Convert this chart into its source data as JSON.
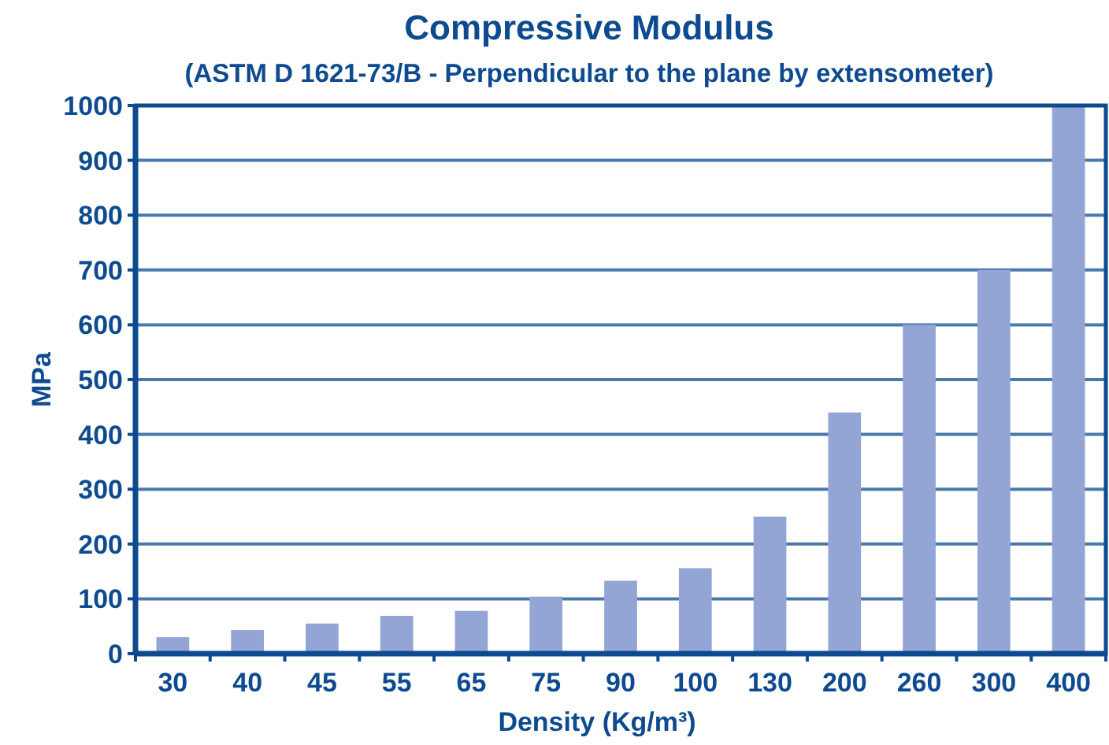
{
  "chart_data": {
    "type": "bar",
    "title": "Compressive Modulus",
    "subtitle": "(ASTM D 1621-73/B - Perpendicular to the plane by extensometer)",
    "xlabel": "Density (Kg/m³)",
    "ylabel": "MPa",
    "categories": [
      "30",
      "40",
      "45",
      "55",
      "65",
      "75",
      "90",
      "100",
      "130",
      "200",
      "260",
      "300",
      "400"
    ],
    "values": [
      30,
      43,
      55,
      69,
      78,
      104,
      133,
      156,
      250,
      440,
      600,
      700,
      1000
    ],
    "color": "#93a5d4",
    "ylim": [
      0,
      1000
    ],
    "yticks": [
      0,
      100,
      200,
      300,
      400,
      500,
      600,
      700,
      800,
      900,
      1000
    ],
    "grid": "y"
  }
}
